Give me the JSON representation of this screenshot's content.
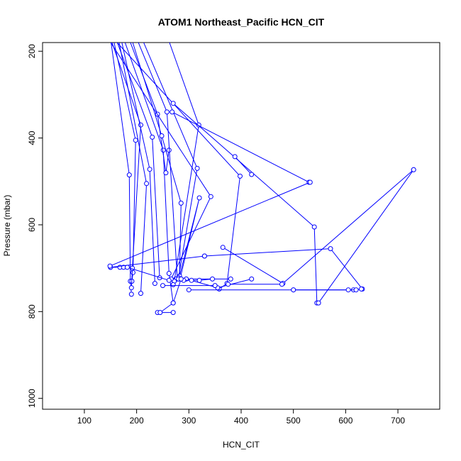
{
  "chart_data": {
    "type": "line",
    "title": "ATOM1 Northeast_Pacific HCN_CIT",
    "xlabel": "HCN_CIT",
    "ylabel": "Pressure (mbar)",
    "xlim": [
      20,
      780
    ],
    "ylim": [
      1025,
      180
    ],
    "y_reversed": true,
    "grid": false,
    "color": "#0000ff",
    "x_ticks": [
      100,
      200,
      300,
      400,
      500,
      600,
      700
    ],
    "x_tick_labels": [
      "100",
      "200",
      "300",
      "400",
      "500",
      "600",
      "700"
    ],
    "y_ticks": [
      200,
      400,
      600,
      800,
      1000
    ],
    "y_tick_labels": [
      "200",
      "400",
      "600",
      "800",
      "1000"
    ],
    "series": [
      {
        "x": [
          150,
          186,
          188,
          190
        ],
        "y": [
          170,
          485,
          730,
          760
        ]
      },
      {
        "x": [
          155,
          198,
          193,
          191
        ],
        "y": [
          170,
          405,
          710,
          730
        ]
      },
      {
        "x": [
          150,
          208,
          192,
          190
        ],
        "y": [
          170,
          370,
          700,
          745
        ]
      },
      {
        "x": [
          165,
          219,
          208
        ],
        "y": [
          170,
          505,
          758
        ]
      },
      {
        "x": [
          170,
          225,
          235
        ],
        "y": [
          170,
          472,
          735
        ]
      },
      {
        "x": [
          160,
          230,
          244
        ],
        "y": [
          170,
          398,
          722
        ]
      },
      {
        "x": [
          175,
          251,
          262,
          270
        ],
        "y": [
          170,
          428,
          712,
          780
        ]
      },
      {
        "x": [
          185,
          240,
          256,
          262
        ],
        "y": [
          170,
          345,
          480,
          428
        ]
      },
      {
        "x": [
          190,
          248,
          285,
          282,
          320,
          283
        ],
        "y": [
          170,
          395,
          550,
          718,
          538,
          725
        ]
      },
      {
        "x": [
          200,
          258,
          278,
          380
        ],
        "y": [
          170,
          340,
          725,
          725
        ]
      },
      {
        "x": [
          210,
          316,
          280,
          275
        ],
        "y": [
          170,
          470,
          722,
          725
        ]
      },
      {
        "x": [
          260,
          319,
          272,
          280
        ],
        "y": [
          170,
          370,
          730,
          725
        ]
      },
      {
        "x": [
          145,
          342,
          266,
          270
        ],
        "y": [
          170,
          535,
          725,
          738
        ]
      },
      {
        "x": [
          155,
          398,
          373,
          358
        ],
        "y": [
          170,
          488,
          735,
          748
        ]
      },
      {
        "x": [
          270,
          540,
          545
        ],
        "y": [
          320,
          605,
          780
        ]
      },
      {
        "x": [
          268,
          530
        ],
        "y": [
          340,
          502
        ]
      },
      {
        "x": [
          388,
          420
        ],
        "y": [
          443,
          484
        ]
      },
      {
        "x": [
          150,
          168,
          175,
          182,
          262
        ],
        "y": [
          698,
          698,
          698,
          698,
          728
        ]
      },
      {
        "x": [
          150,
          330
        ],
        "y": [
          698,
          672
        ]
      },
      {
        "x": [
          149,
          532
        ],
        "y": [
          695,
          502
        ]
      },
      {
        "x": [
          300,
          500,
          615
        ],
        "y": [
          750,
          750,
          750
        ]
      },
      {
        "x": [
          295,
          355,
          420
        ],
        "y": [
          725,
          745,
          725
        ]
      },
      {
        "x": [
          290,
          305,
          320,
          345
        ],
        "y": [
          728,
          728,
          728,
          725
        ]
      },
      {
        "x": [
          330,
          571,
          632
        ],
        "y": [
          672,
          655,
          748
        ]
      },
      {
        "x": [
          365,
          480,
          730
        ],
        "y": [
          652,
          735,
          473
        ]
      },
      {
        "x": [
          375,
          478
        ],
        "y": [
          737,
          737
        ]
      },
      {
        "x": [
          500,
          605,
          620,
          630
        ],
        "y": [
          750,
          750,
          750,
          748
        ]
      },
      {
        "x": [
          548,
          730
        ],
        "y": [
          780,
          473
        ]
      },
      {
        "x": [
          240,
          270
        ],
        "y": [
          802,
          802
        ]
      },
      {
        "x": [
          245,
          270,
          285
        ],
        "y": [
          802,
          780,
          725
        ]
      },
      {
        "x": [
          250,
          350
        ],
        "y": [
          740,
          740
        ]
      }
    ]
  }
}
